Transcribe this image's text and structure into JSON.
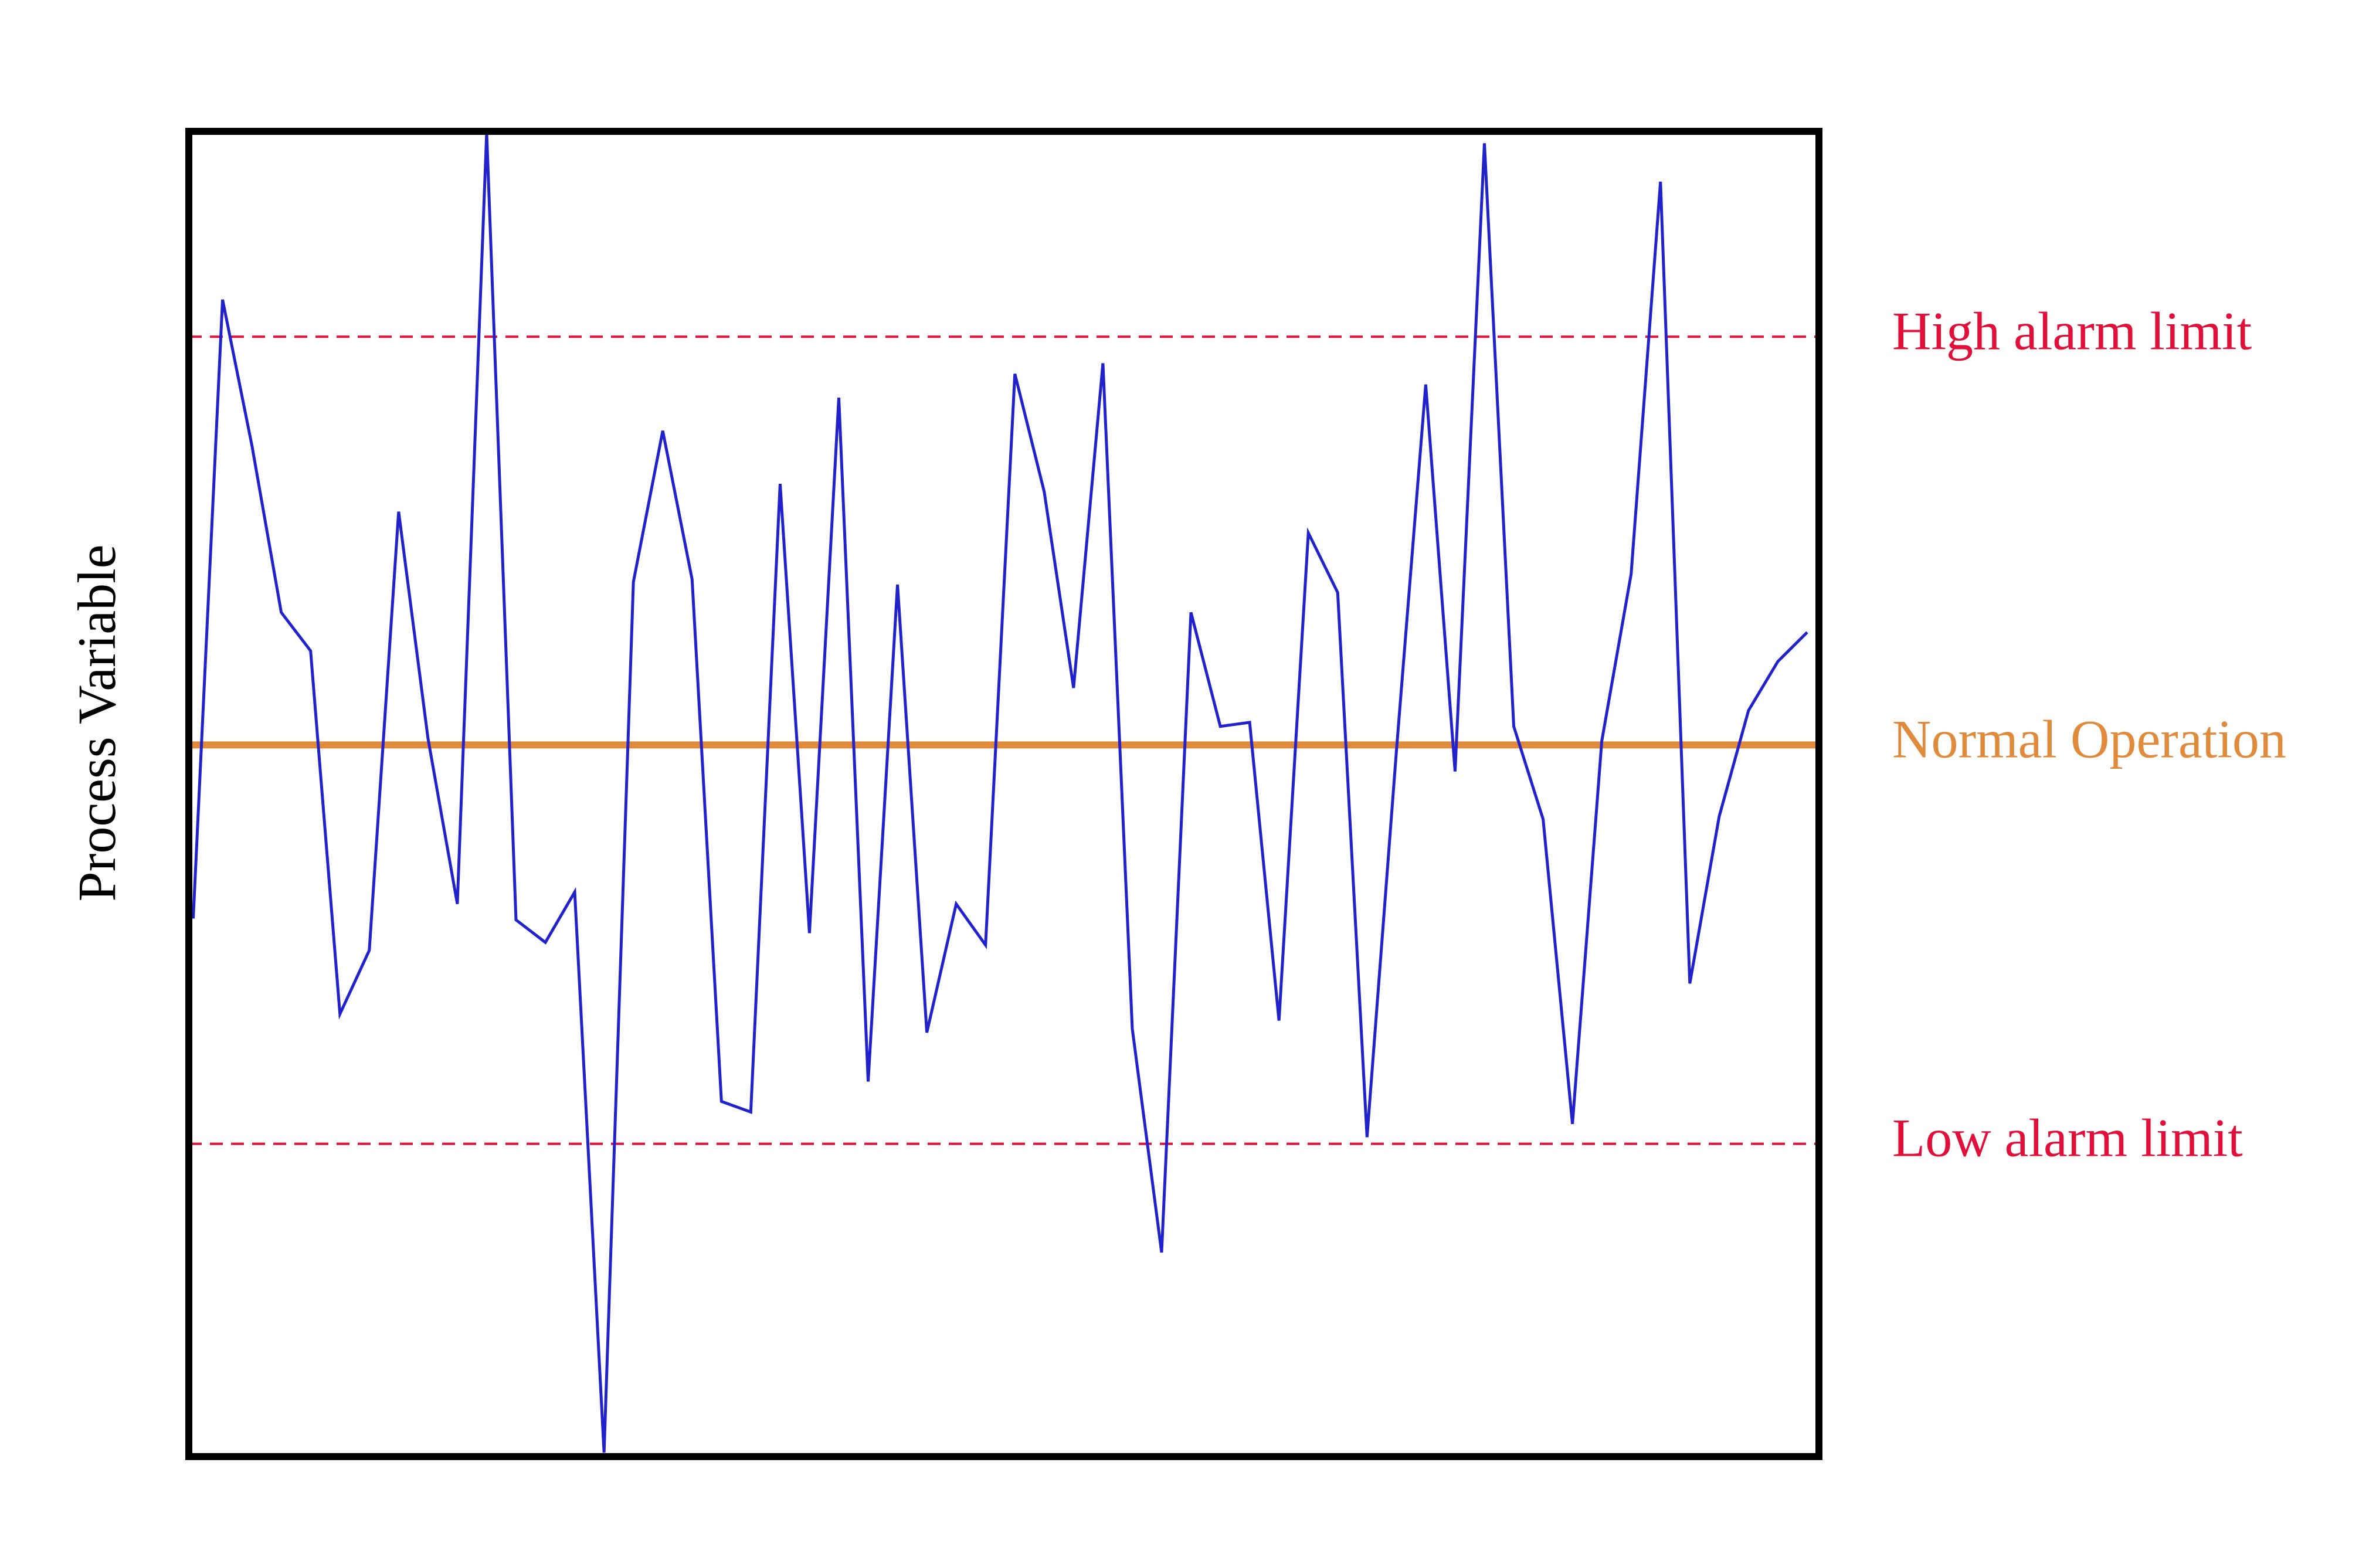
{
  "chart_data": {
    "type": "line",
    "y_label": "Process Variable",
    "x": [
      0,
      1,
      2,
      3,
      4,
      5,
      6,
      7,
      8,
      9,
      10,
      11,
      12,
      13,
      14,
      15,
      16,
      17,
      18,
      19,
      20,
      21,
      22,
      23,
      24,
      25,
      26,
      27,
      28,
      29,
      30,
      31,
      32,
      33,
      34,
      35,
      36,
      37,
      38,
      39,
      40,
      41,
      42,
      43,
      44,
      45,
      46,
      47,
      48,
      49,
      50,
      51,
      52,
      53,
      54,
      55
    ],
    "values": [
      40.6,
      87.3,
      76.3,
      63.7,
      60.8,
      33.4,
      38.2,
      71.3,
      54.2,
      41.7,
      99.9,
      40.5,
      38.8,
      42.6,
      0.3,
      66.0,
      77.4,
      66.2,
      26.8,
      26.0,
      73.4,
      39.5,
      79.9,
      28.3,
      65.8,
      32.0,
      41.7,
      38.6,
      81.7,
      72.8,
      58.0,
      82.5,
      32.3,
      15.4,
      63.7,
      55.1,
      55.4,
      32.9,
      69.7,
      65.2,
      24.1,
      53.2,
      80.9,
      51.7,
      99.1,
      55.1,
      48.1,
      25.1,
      54.0,
      66.6,
      96.2,
      35.7,
      48.3,
      56.3,
      60.0,
      62.2
    ],
    "color": "#2222cc",
    "xlim": [
      -0.15,
      55.4
    ],
    "ylim": [
      0,
      100
    ],
    "reference_lines": [
      {
        "label": "High alarm limit",
        "value": 84.5,
        "color": "#e0103a",
        "style": "dashed"
      },
      {
        "label": "Normal Operation",
        "value": 53.7,
        "color": "#e08a3c",
        "style": "solid"
      },
      {
        "label": "Low alarm limit",
        "value": 23.6,
        "color": "#e0103a",
        "style": "dashed"
      }
    ]
  }
}
